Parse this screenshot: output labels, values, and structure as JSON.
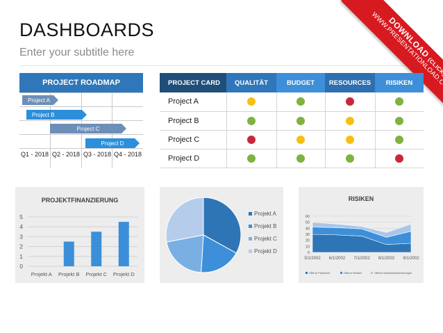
{
  "header": {
    "title": "DASHBOARDS",
    "subtitle": "Enter your subtitle here"
  },
  "ribbon": {
    "download_label": "DOWNLOAD",
    "click_label": "(CLICK)",
    "url": "WWW.PRESENTATIONLOAD.COM"
  },
  "roadmap": {
    "title": "PROJECT ROADMAP",
    "quarters": [
      "Q1 - 2018",
      "Q2 - 2018",
      "Q3 - 2018",
      "Q4 - 2018"
    ],
    "bars": [
      {
        "label": "Project A",
        "color": "#6d8fb7"
      },
      {
        "label": "Project B",
        "color": "#2b8fdb"
      },
      {
        "label": "Project C",
        "color": "#6d8fb7"
      },
      {
        "label": "Project D",
        "color": "#2b8fdb"
      }
    ]
  },
  "card": {
    "headers": [
      "PROJECT CARD",
      "QUALITÄT",
      "BUDGET",
      "RESOURCES",
      "RISIKEN"
    ],
    "rows": [
      {
        "name": "Project A",
        "status": [
          "yellow",
          "green",
          "red",
          "green"
        ]
      },
      {
        "name": "Project B",
        "status": [
          "green",
          "green",
          "yellow",
          "green"
        ]
      },
      {
        "name": "Project C",
        "status": [
          "red",
          "yellow",
          "yellow",
          "green"
        ]
      },
      {
        "name": "Project D",
        "status": [
          "green",
          "green",
          "green",
          "red"
        ]
      }
    ],
    "status_colors": {
      "green": "#7fb241",
      "yellow": "#f6c012",
      "red": "#c8283a"
    }
  },
  "chart_data": [
    {
      "type": "bar",
      "title": "PROJEKTFINANZIERUNG",
      "categories": [
        "Projekt A",
        "Projekt B",
        "Projekt C",
        "Projekt D"
      ],
      "values": [
        0,
        2.5,
        3.5,
        4.5
      ],
      "ylim": [
        0,
        5
      ],
      "yticks": [
        0,
        1,
        2,
        3,
        4,
        5
      ],
      "grid": true,
      "color": "#3a8fd8"
    },
    {
      "type": "pie",
      "title": "",
      "categories": [
        "Projekt A",
        "Projekt B",
        "Projekt C",
        "Projekt D"
      ],
      "values": [
        33,
        18,
        21,
        28
      ],
      "colors": [
        "#2e75b6",
        "#3d8fd9",
        "#7aafe3",
        "#b5cdea"
      ],
      "legend": "right"
    },
    {
      "type": "area",
      "title": "RISIKEN",
      "x": [
        "5/1/2002",
        "6/1/2002",
        "7/1/2002",
        "8/1/2002",
        "9/1/2002"
      ],
      "ylim": [
        0,
        60
      ],
      "yticks": [
        0,
        10,
        20,
        30,
        40,
        50,
        60
      ],
      "series": [
        {
          "name": "Offene Probleme",
          "values": [
            30,
            29,
            27,
            13,
            15
          ],
          "color": "#2e75b6"
        },
        {
          "name": "Offene Risiken",
          "values": [
            12,
            12,
            12,
            12,
            20
          ],
          "color": "#3d8fd9"
        },
        {
          "name": "Offene Wechselanforderungen",
          "values": [
            8,
            6,
            4,
            8,
            12
          ],
          "color": "#a9c6ea"
        }
      ],
      "legend": "bottom"
    }
  ]
}
